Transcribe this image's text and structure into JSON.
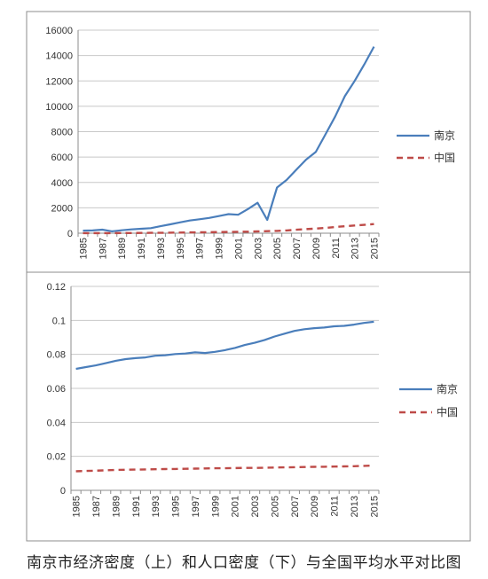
{
  "caption": "南京市经济密度（上）和人口密度（下）与全国平均水平对比图",
  "chart_data": [
    {
      "type": "line",
      "x": [
        1985,
        1986,
        1987,
        1988,
        1989,
        1990,
        1991,
        1992,
        1993,
        1994,
        1995,
        1996,
        1997,
        1998,
        1999,
        2000,
        2001,
        2002,
        2003,
        2004,
        2005,
        2006,
        2007,
        2008,
        2009,
        2010,
        2011,
        2012,
        2013,
        2014,
        2015
      ],
      "x_ticks": [
        "1985",
        "1987",
        "1989",
        "1991",
        "1993",
        "1995",
        "1997",
        "1999",
        "2001",
        "2003",
        "2005",
        "2007",
        "2009",
        "2011",
        "2013",
        "2015"
      ],
      "y_ticks": [
        "0",
        "2000",
        "4000",
        "6000",
        "8000",
        "10000",
        "12000",
        "14000",
        "16000"
      ],
      "ylim": [
        0,
        16000
      ],
      "legend_position": "right",
      "series": [
        {
          "name": "南京",
          "color": "#4a7ebb",
          "style": "solid",
          "values": [
            200,
            220,
            280,
            150,
            230,
            300,
            350,
            400,
            550,
            700,
            850,
            1000,
            1100,
            1200,
            1350,
            1500,
            1450,
            1900,
            2400,
            1050,
            3600,
            4200,
            5000,
            5800,
            6400,
            7800,
            9200,
            10800,
            12000,
            13300,
            14700
          ]
        },
        {
          "name": "中国",
          "color": "#be4b48",
          "style": "dashed",
          "values": [
            5,
            5,
            8,
            10,
            12,
            15,
            20,
            25,
            30,
            40,
            50,
            60,
            70,
            80,
            90,
            100,
            110,
            120,
            140,
            160,
            180,
            220,
            270,
            320,
            360,
            420,
            490,
            550,
            610,
            660,
            720
          ]
        }
      ]
    },
    {
      "type": "line",
      "x": [
        1985,
        1986,
        1987,
        1988,
        1989,
        1990,
        1991,
        1992,
        1993,
        1994,
        1995,
        1996,
        1997,
        1998,
        1999,
        2000,
        2001,
        2002,
        2003,
        2004,
        2005,
        2006,
        2007,
        2008,
        2009,
        2010,
        2011,
        2012,
        2013,
        2014,
        2015
      ],
      "x_ticks": [
        "1985",
        "1987",
        "1989",
        "1991",
        "1993",
        "1995",
        "1997",
        "1999",
        "2001",
        "2003",
        "2005",
        "2007",
        "2009",
        "2011",
        "2013",
        "2015"
      ],
      "y_ticks": [
        "0",
        "0.02",
        "0.04",
        "0.06",
        "0.08",
        "0.1",
        "0.12"
      ],
      "ylim": [
        0,
        0.12
      ],
      "legend_position": "right",
      "series": [
        {
          "name": "南京",
          "color": "#4a7ebb",
          "style": "solid",
          "values": [
            0.0715,
            0.0725,
            0.0735,
            0.0748,
            0.0762,
            0.0772,
            0.0778,
            0.0782,
            0.0792,
            0.0795,
            0.0802,
            0.0805,
            0.0812,
            0.0808,
            0.0815,
            0.0825,
            0.0838,
            0.0855,
            0.0868,
            0.0885,
            0.0905,
            0.0922,
            0.0938,
            0.0948,
            0.0954,
            0.0958,
            0.0965,
            0.0968,
            0.0975,
            0.0985,
            0.0992
          ]
        },
        {
          "name": "中国",
          "color": "#be4b48",
          "style": "dashed",
          "values": [
            0.0112,
            0.0114,
            0.0116,
            0.0118,
            0.012,
            0.0121,
            0.0122,
            0.0123,
            0.0124,
            0.0125,
            0.0126,
            0.0127,
            0.0128,
            0.0129,
            0.013,
            0.013,
            0.0131,
            0.0132,
            0.0132,
            0.0133,
            0.0134,
            0.0135,
            0.0136,
            0.0137,
            0.0138,
            0.0139,
            0.014,
            0.0141,
            0.0142,
            0.0144,
            0.0146
          ]
        }
      ]
    }
  ]
}
